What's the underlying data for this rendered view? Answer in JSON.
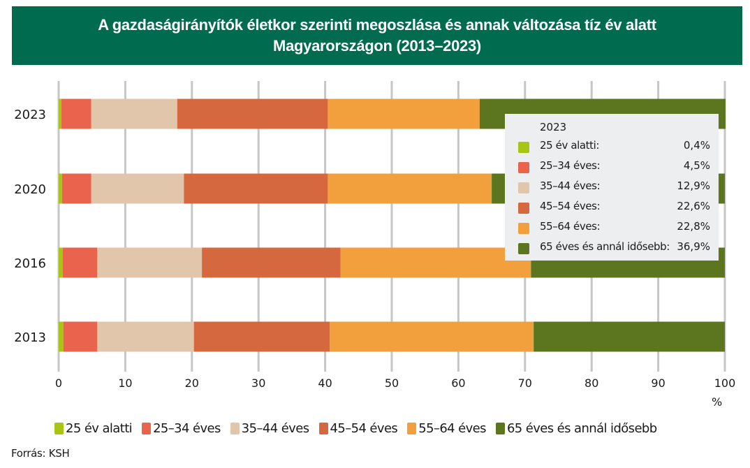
{
  "title": {
    "line1": "A gazdaságirányítók életkor szerinti megoszlása és annak változása tíz év alatt",
    "line2": "Magyarországon (2013–2023)"
  },
  "source": "Forrás: KSH",
  "chart_data": {
    "type": "bar",
    "orientation": "horizontal",
    "stacked": true,
    "title": "A gazdaságirányítók életkor szerinti megoszlása és annak változása tíz év alatt Magyarországon (2013–2023)",
    "xlabel": "%",
    "ylabel": "",
    "xlim": [
      0,
      100
    ],
    "x_ticks": [
      "0",
      "10",
      "20",
      "30",
      "40",
      "50",
      "60",
      "70",
      "80",
      "90",
      "100"
    ],
    "grid": "vertical",
    "categories": [
      "2023",
      "2020",
      "2016",
      "2013"
    ],
    "series": [
      {
        "name": "25 év alatti",
        "color": "#a8c514",
        "values": [
          0.4,
          0.5,
          0.6,
          0.7
        ]
      },
      {
        "name": "25–34 éves",
        "color": "#ea644d",
        "values": [
          4.5,
          4.4,
          5.2,
          5.1
        ]
      },
      {
        "name": "35–44 éves",
        "color": "#e1c6ab",
        "values": [
          12.9,
          13.9,
          15.7,
          14.5
        ]
      },
      {
        "name": "45–54 éves",
        "color": "#d6683f",
        "values": [
          22.6,
          21.6,
          20.8,
          20.4
        ]
      },
      {
        "name": "55–64 éves",
        "color": "#f2a03d",
        "values": [
          22.8,
          24.6,
          28.6,
          30.6
        ]
      },
      {
        "name": "65 éves és annál idősebb",
        "color": "#5b761f",
        "values": [
          36.9,
          35.0,
          29.1,
          28.7
        ]
      }
    ],
    "legend_position": "bottom",
    "inset_legend": {
      "title": "2023",
      "position": "top-right",
      "rows": [
        {
          "label": "25 év alatti:",
          "value": "0,4%",
          "color": "#a8c514"
        },
        {
          "label": "25–34 éves:",
          "value": "4,5%",
          "color": "#ea644d"
        },
        {
          "label": "35–44 éves:",
          "value": "12,9%",
          "color": "#e1c6ab"
        },
        {
          "label": "45–54 éves:",
          "value": "22,6%",
          "color": "#d6683f"
        },
        {
          "label": "55–64 éves:",
          "value": "22,8%",
          "color": "#f2a03d"
        },
        {
          "label": "65 éves és annál idősebb:",
          "value": "36,9%",
          "color": "#5b761f"
        }
      ]
    },
    "bottom_legend": [
      "25 év alatti",
      "25–34 éves",
      "35–44 éves",
      "45–54 éves",
      "55–64 éves",
      "65 éves és annál idősebb"
    ]
  },
  "colors": {
    "title_bg": "#006b4f",
    "grid": "#c6c6c6",
    "legend_bg": "#eceef0"
  }
}
